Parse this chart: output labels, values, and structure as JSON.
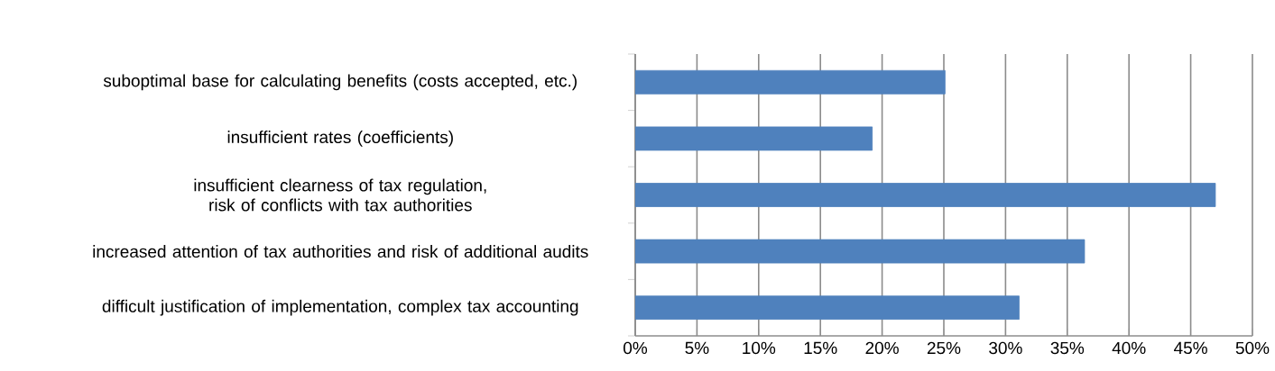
{
  "chart_data": {
    "type": "bar",
    "orientation": "horizontal",
    "categories": [
      "suboptimal base for calculating benefits (costs accepted, etc.)",
      "insufficient rates (coefficients)",
      "insufficient clearness of tax regulation, risk of conflicts with tax authorities",
      "increased attention of tax authorities and risk of additional audits",
      "difficult justification of implementation, complex tax accounting"
    ],
    "values": [
      25.1,
      19.2,
      47.0,
      36.4,
      31.1
    ],
    "color": "#4f81bd",
    "xlim": [
      0,
      50
    ],
    "xticks": [
      {
        "value": 0,
        "label": "0%"
      },
      {
        "value": 5,
        "label": "5%"
      },
      {
        "value": 10,
        "label": "10%"
      },
      {
        "value": 15,
        "label": "15%"
      },
      {
        "value": 20,
        "label": "20%"
      },
      {
        "value": 25,
        "label": "25%"
      },
      {
        "value": 30,
        "label": "30%"
      },
      {
        "value": 35,
        "label": "35%"
      },
      {
        "value": 40,
        "label": "40%"
      },
      {
        "value": 45,
        "label": "45%"
      },
      {
        "value": 50,
        "label": "50%"
      }
    ],
    "grid": "x"
  }
}
